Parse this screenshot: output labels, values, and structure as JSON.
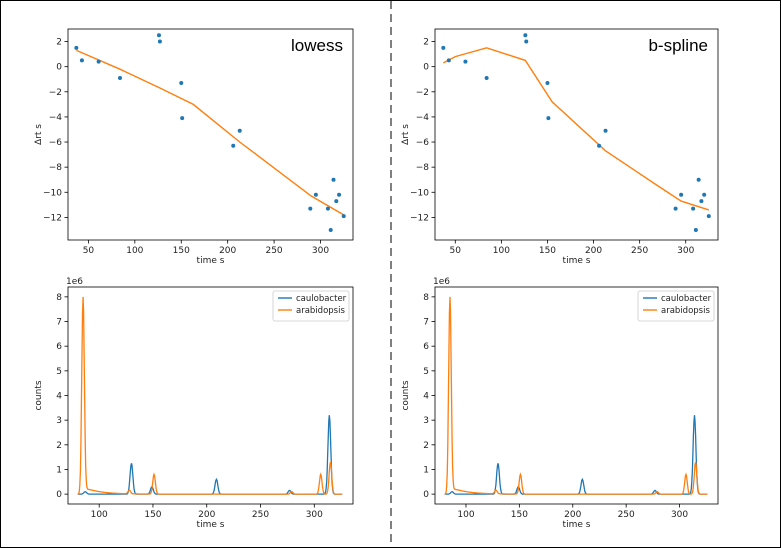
{
  "colors": {
    "blue": "#1f77b4",
    "orange": "#ff7f0e"
  },
  "chart_data": [
    {
      "type": "scatter",
      "panel": "top-left",
      "annotation": "lowess",
      "xlabel": "time s",
      "ylabel": "Δrt s",
      "xlim": [
        28,
        335
      ],
      "ylim": [
        -13.8,
        3.0
      ],
      "xticks": [
        50,
        100,
        150,
        200,
        250,
        300
      ],
      "yticks": [
        2,
        0,
        -2,
        -4,
        -6,
        -8,
        -10,
        -12
      ],
      "points": {
        "x": [
          37,
          43,
          61,
          84,
          126,
          127,
          150,
          151,
          206,
          213,
          289,
          295,
          308,
          311,
          314,
          317,
          320,
          325
        ],
        "y": [
          1.5,
          0.5,
          0.4,
          -0.9,
          2.5,
          2.0,
          -1.3,
          -4.1,
          -6.3,
          -5.1,
          -11.3,
          -10.2,
          -11.3,
          -13.0,
          -9.0,
          -10.7,
          -10.2,
          -11.9
        ]
      },
      "fit": {
        "x": [
          37,
          84,
          127,
          163,
          213,
          290,
          325
        ],
        "y": [
          1.3,
          -0.2,
          -1.7,
          -3.0,
          -6.0,
          -10.3,
          -11.8
        ]
      }
    },
    {
      "type": "scatter",
      "panel": "top-right",
      "annotation": "b-spline",
      "xlabel": "time s",
      "ylabel": "Δrt s",
      "xlim": [
        28,
        335
      ],
      "ylim": [
        -13.8,
        3.0
      ],
      "xticks": [
        50,
        100,
        150,
        200,
        250,
        300
      ],
      "yticks": [
        2,
        0,
        -2,
        -4,
        -6,
        -8,
        -10,
        -12
      ],
      "points": {
        "x": [
          37,
          43,
          61,
          84,
          126,
          127,
          150,
          151,
          206,
          213,
          289,
          295,
          308,
          311,
          314,
          317,
          320,
          325
        ],
        "y": [
          1.5,
          0.5,
          0.4,
          -0.9,
          2.5,
          2.0,
          -1.3,
          -4.1,
          -6.3,
          -5.1,
          -11.3,
          -10.2,
          -11.3,
          -13.0,
          -9.0,
          -10.7,
          -10.2,
          -11.9
        ]
      },
      "fit": {
        "x": [
          37,
          50,
          84,
          126,
          155,
          213,
          270,
          295,
          325
        ],
        "y": [
          0.3,
          0.8,
          1.5,
          0.5,
          -2.8,
          -6.7,
          -9.5,
          -10.7,
          -11.4
        ]
      }
    },
    {
      "type": "line",
      "panel": "bottom-left",
      "xlabel": "time s",
      "ylabel": "counts",
      "offset_label": "1e6",
      "xlim": [
        71,
        336
      ],
      "ylim": [
        -0.4,
        8.4
      ],
      "xticks": [
        100,
        150,
        200,
        250,
        300
      ],
      "yticks": [
        0,
        1,
        2,
        3,
        4,
        5,
        6,
        7,
        8
      ],
      "legend": [
        "caulobacter",
        "arabidopsis"
      ],
      "peaks": {
        "caulobacter": [
          [
            87,
            0.1
          ],
          [
            130,
            1.25
          ],
          [
            149,
            0.3
          ],
          [
            209,
            0.6
          ],
          [
            277,
            0.15
          ],
          [
            314,
            3.2
          ]
        ],
        "arabidopsis": [
          [
            85,
            8.0
          ],
          [
            128,
            0.15
          ],
          [
            151,
            0.8
          ],
          [
            279,
            0.1
          ],
          [
            306,
            0.8
          ],
          [
            315,
            1.3
          ]
        ]
      }
    },
    {
      "type": "line",
      "panel": "bottom-right",
      "xlabel": "time s",
      "ylabel": "counts",
      "offset_label": "1e6",
      "xlim": [
        71,
        336
      ],
      "ylim": [
        -0.4,
        8.4
      ],
      "xticks": [
        100,
        150,
        200,
        250,
        300
      ],
      "yticks": [
        0,
        1,
        2,
        3,
        4,
        5,
        6,
        7,
        8
      ],
      "legend": [
        "caulobacter",
        "arabidopsis"
      ],
      "peaks": {
        "caulobacter": [
          [
            87,
            0.1
          ],
          [
            130,
            1.25
          ],
          [
            149,
            0.3
          ],
          [
            209,
            0.6
          ],
          [
            277,
            0.15
          ],
          [
            314,
            3.2
          ]
        ],
        "arabidopsis": [
          [
            85,
            8.0
          ],
          [
            128,
            0.15
          ],
          [
            151,
            0.8
          ],
          [
            279,
            0.1
          ],
          [
            306,
            0.8
          ],
          [
            315,
            1.3
          ]
        ]
      }
    }
  ]
}
